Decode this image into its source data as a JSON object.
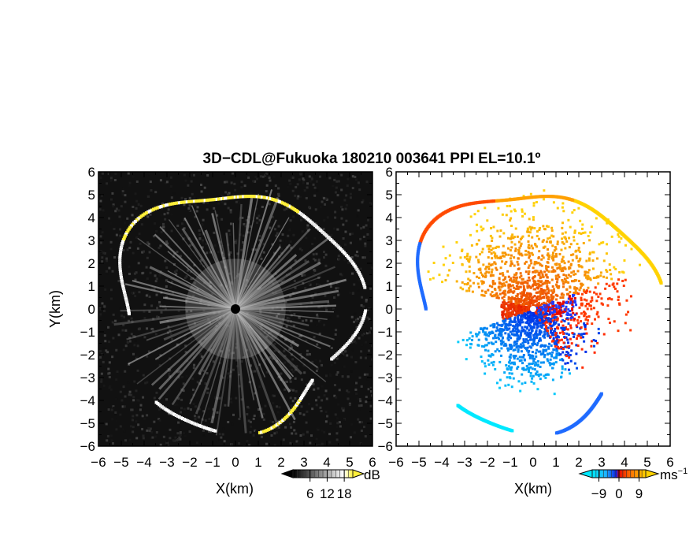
{
  "title": "3D−CDL@Fukuoka 180210 003641 PPI EL=10.1º",
  "colors": {
    "background": "#ffffff",
    "ring_yellow": "#ffef3a",
    "velocity_palette": [
      "#00e8ff",
      "#1fb6ff",
      "#1f6bff",
      "#0a1fe6",
      "#e60a00",
      "#ff4a00",
      "#ff8c00",
      "#ffd200"
    ]
  },
  "chart_data": [
    {
      "type": "heatmap",
      "panel": "left",
      "quantity": "SNR",
      "xlabel": "X(km)",
      "ylabel": "Y(km)",
      "xlim": [
        -6,
        6
      ],
      "ylim": [
        -6,
        6
      ],
      "xticks": [
        "−6",
        "−5",
        "−4",
        "−3",
        "−2",
        "−1",
        "0",
        "1",
        "2",
        "3",
        "4",
        "5",
        "6"
      ],
      "yticks": [
        "−6",
        "−5",
        "−4",
        "−3",
        "−2",
        "−1",
        "0",
        "1",
        "2",
        "3",
        "4",
        "5",
        "6"
      ],
      "colorbar": {
        "unit": "dB",
        "ticks": [
          "6",
          "12",
          "18"
        ],
        "tick_values": [
          6,
          12,
          18
        ],
        "range": [
          0,
          21
        ],
        "colors": [
          "#000000",
          "#ffffff",
          "#ffef3a"
        ]
      }
    },
    {
      "type": "heatmap",
      "panel": "right",
      "quantity": "Doppler velocity",
      "xlabel": "X(km)",
      "ylabel": "",
      "xlim": [
        -6,
        6
      ],
      "ylim": [
        -6,
        6
      ],
      "xticks": [
        "−6",
        "−5",
        "−4",
        "−3",
        "−2",
        "−1",
        "0",
        "1",
        "2",
        "3",
        "4",
        "5",
        "6"
      ],
      "yticks": [
        "−6",
        "−5",
        "−4",
        "−3",
        "−2",
        "−1",
        "0",
        "1",
        "2",
        "3",
        "4",
        "5",
        "6"
      ],
      "colorbar": {
        "unit": "ms",
        "unit_exponent": "−1",
        "ticks": [
          "−9",
          "0",
          "9"
        ],
        "tick_values": [
          -9,
          0,
          9
        ],
        "range": [
          -12,
          12
        ]
      }
    }
  ]
}
